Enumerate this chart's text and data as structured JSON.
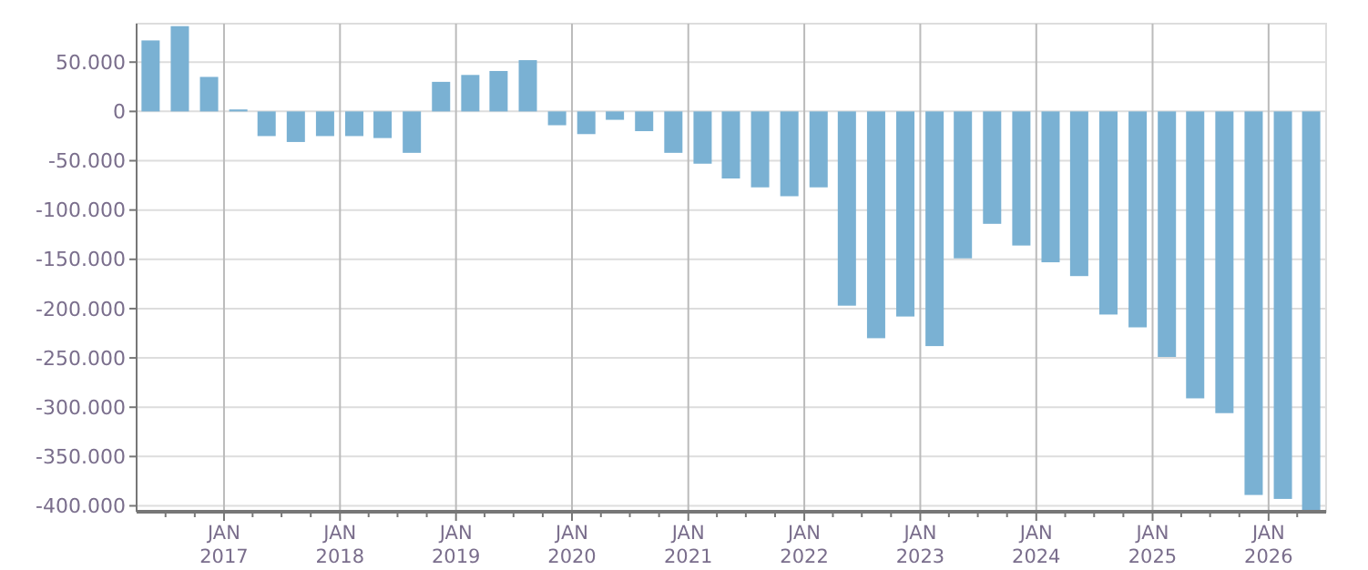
{
  "chart_data": {
    "type": "bar",
    "x": [
      "2016-05-15",
      "2016-08-15",
      "2016-11-15",
      "2017-02-15",
      "2017-05-15",
      "2017-08-15",
      "2017-11-15",
      "2018-02-15",
      "2018-05-15",
      "2018-08-15",
      "2018-11-15",
      "2019-02-15",
      "2019-05-15",
      "2019-08-15",
      "2019-11-15",
      "2020-02-15",
      "2020-05-15",
      "2020-08-15",
      "2020-11-15",
      "2021-02-15",
      "2021-05-15",
      "2021-08-15",
      "2021-11-15",
      "2022-02-15",
      "2022-05-15",
      "2022-08-15",
      "2022-11-15",
      "2023-02-15",
      "2023-05-15",
      "2023-08-15",
      "2023-11-15",
      "2024-02-15",
      "2024-05-15",
      "2024-08-15",
      "2024-11-15",
      "2025-02-15",
      "2025-05-15",
      "2025-08-15",
      "2025-11-15",
      "2026-02-15",
      "2026-05-15"
    ],
    "values": [
      72000,
      86500,
      35000,
      2000,
      -25000,
      -31000,
      -25000,
      -25000,
      -27000,
      -42000,
      30000,
      37000,
      41000,
      52000,
      -14000,
      -23000,
      -8500,
      -20000,
      -42000,
      -53000,
      -68000,
      -77000,
      -86000,
      -77000,
      -197000,
      -230000,
      -208000,
      -238000,
      -149000,
      -114000,
      -136000,
      -153000,
      -167000,
      -206000,
      -219000,
      -249000,
      -291000,
      -306000,
      -389000,
      -393000,
      -405000
    ],
    "color": "#7ab1d3",
    "xlim": [
      "2016-04-01",
      "2026-07-01"
    ],
    "xticks": [
      {
        "value": "2016-07-01",
        "label": null
      },
      {
        "value": "2016-10-01",
        "label": null
      },
      {
        "value": "2017-01-01",
        "label": "JAN 2017"
      },
      {
        "value": "2017-04-01",
        "label": null
      },
      {
        "value": "2017-07-01",
        "label": null
      },
      {
        "value": "2017-10-01",
        "label": null
      },
      {
        "value": "2018-01-01",
        "label": "JAN 2018"
      },
      {
        "value": "2018-04-01",
        "label": null
      },
      {
        "value": "2018-07-01",
        "label": null
      },
      {
        "value": "2018-10-01",
        "label": null
      },
      {
        "value": "2019-01-01",
        "label": "JAN 2019"
      },
      {
        "value": "2019-04-01",
        "label": null
      },
      {
        "value": "2019-07-01",
        "label": null
      },
      {
        "value": "2019-10-01",
        "label": null
      },
      {
        "value": "2020-01-01",
        "label": "JAN 2020"
      },
      {
        "value": "2020-04-01",
        "label": null
      },
      {
        "value": "2020-07-01",
        "label": null
      },
      {
        "value": "2020-10-01",
        "label": null
      },
      {
        "value": "2021-01-01",
        "label": "JAN 2021"
      },
      {
        "value": "2021-04-01",
        "label": null
      },
      {
        "value": "2021-07-01",
        "label": null
      },
      {
        "value": "2021-10-01",
        "label": null
      },
      {
        "value": "2022-01-01",
        "label": "JAN 2022"
      },
      {
        "value": "2022-04-01",
        "label": null
      },
      {
        "value": "2022-07-01",
        "label": null
      },
      {
        "value": "2022-10-01",
        "label": null
      },
      {
        "value": "2023-01-01",
        "label": "JAN 2023"
      },
      {
        "value": "2023-04-01",
        "label": null
      },
      {
        "value": "2023-07-01",
        "label": null
      },
      {
        "value": "2023-10-01",
        "label": null
      },
      {
        "value": "2024-01-01",
        "label": "JAN 2024"
      },
      {
        "value": "2024-04-01",
        "label": null
      },
      {
        "value": "2024-07-01",
        "label": null
      },
      {
        "value": "2024-10-01",
        "label": null
      },
      {
        "value": "2025-01-01",
        "label": "JAN 2025"
      },
      {
        "value": "2025-04-01",
        "label": null
      },
      {
        "value": "2025-07-01",
        "label": null
      },
      {
        "value": "2025-10-01",
        "label": null
      },
      {
        "value": "2026-01-01",
        "label": "JAN 2026"
      },
      {
        "value": "2026-04-01",
        "label": null
      }
    ],
    "ylim": [
      -406000,
      89000
    ],
    "yticks": [
      {
        "value": -400000,
        "label": "-400.000"
      },
      {
        "value": -350000,
        "label": "-350.000"
      },
      {
        "value": -300000,
        "label": "-300.000"
      },
      {
        "value": -250000,
        "label": "-250.000"
      },
      {
        "value": -200000,
        "label": "-200.000"
      },
      {
        "value": -150000,
        "label": "-150.000"
      },
      {
        "value": -100000,
        "label": "-100.000"
      },
      {
        "value": -50000,
        "label": "-50.000"
      },
      {
        "value": 0,
        "label": "0"
      },
      {
        "value": 50000,
        "label": "50.000"
      }
    ],
    "grid": true
  }
}
